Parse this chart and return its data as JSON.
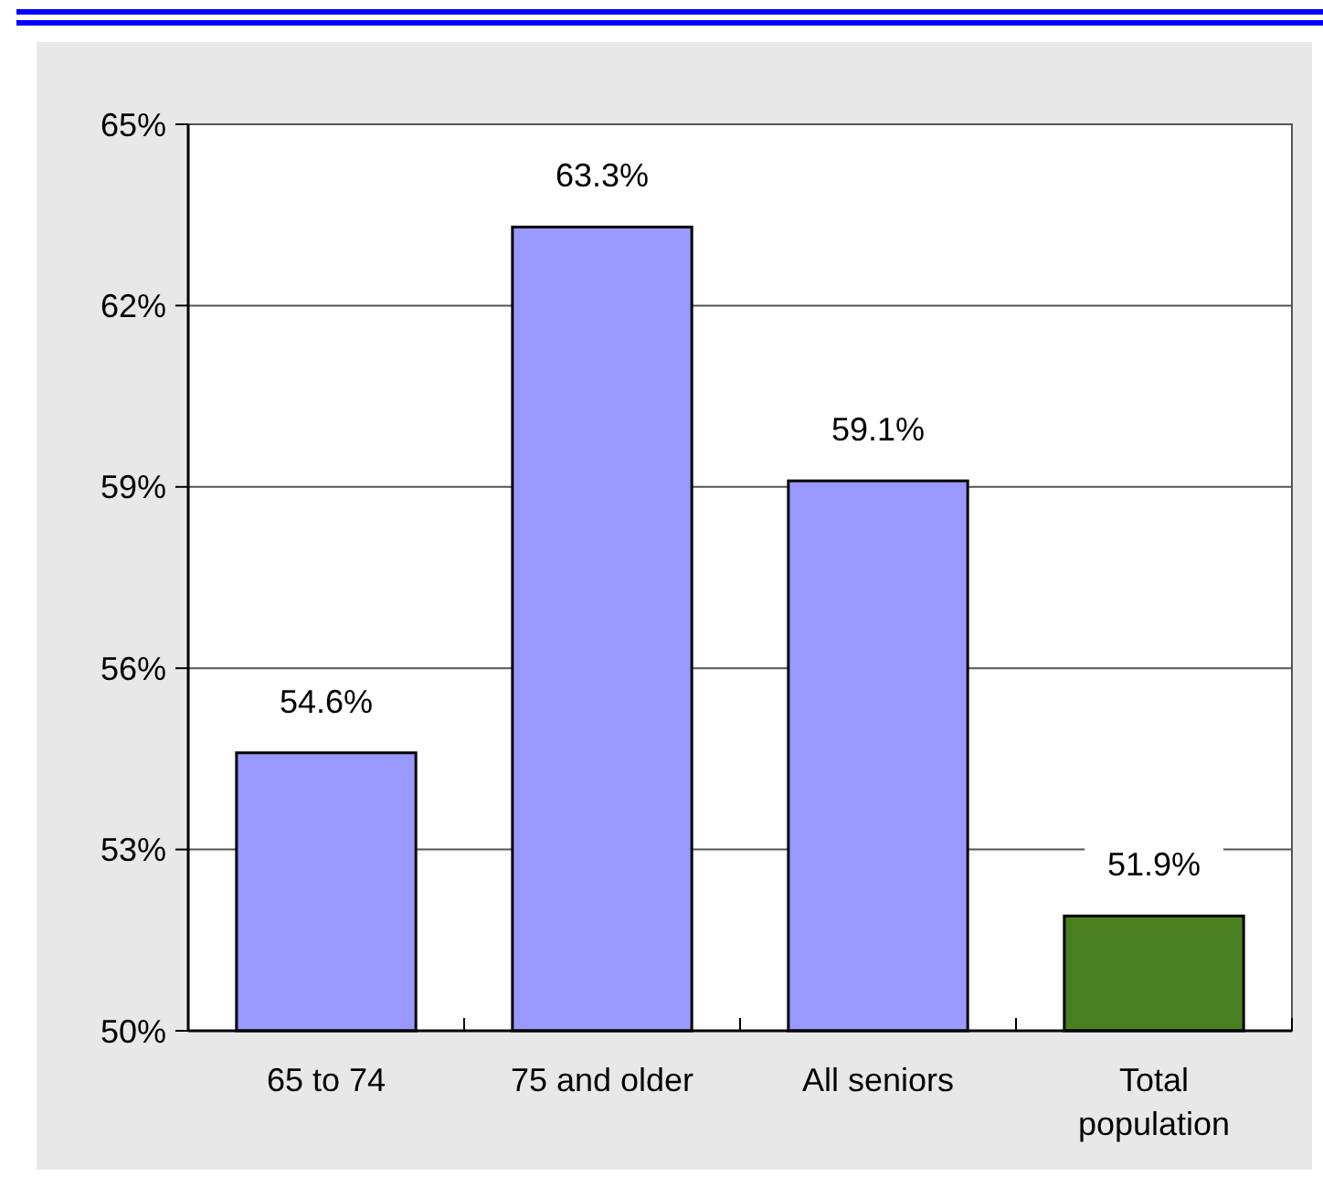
{
  "chart_data": {
    "type": "bar",
    "categories": [
      "65 to 74",
      "75 and older",
      "All seniors",
      "Total population"
    ],
    "values": [
      54.6,
      63.3,
      59.1,
      51.9
    ],
    "colors": [
      "#9999ff",
      "#9999ff",
      "#9999ff",
      "#4a7f1f"
    ],
    "value_labels": [
      "54.6%",
      "63.3%",
      "59.1%",
      "51.9%"
    ],
    "ylim": [
      50,
      65
    ],
    "yticks": [
      {
        "value": 50,
        "label": "50%"
      },
      {
        "value": 53,
        "label": "53%"
      },
      {
        "value": 56,
        "label": "56%"
      },
      {
        "value": 59,
        "label": "59%"
      },
      {
        "value": 62,
        "label": "62%"
      },
      {
        "value": 65,
        "label": "65%"
      }
    ],
    "grid": "y"
  }
}
